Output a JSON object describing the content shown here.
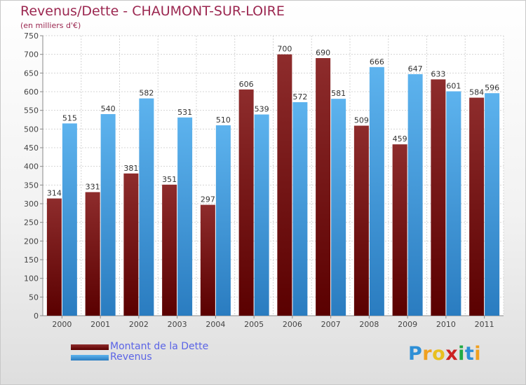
{
  "header": {
    "title": "Revenus/Dette - CHAUMONT-SUR-LOIRE",
    "subtitle": "(en milliers d'€)"
  },
  "legend": {
    "items": [
      {
        "label": "Montant de la Dette",
        "color": "#7a1818"
      },
      {
        "label": "Revenus",
        "color": "#3d9ce0"
      }
    ]
  },
  "brand": {
    "letters": [
      {
        "ch": "P",
        "color": "#2e8fd6"
      },
      {
        "ch": "r",
        "color": "#f0a020"
      },
      {
        "ch": "o",
        "color": "#e8c020"
      },
      {
        "ch": "x",
        "color": "#cc2222"
      },
      {
        "ch": "i",
        "color": "#22aa44"
      },
      {
        "ch": "t",
        "color": "#2e8fd6"
      },
      {
        "ch": "i",
        "color": "#f0a020"
      }
    ]
  },
  "chart_data": {
    "type": "bar",
    "title": "Revenus/Dette - CHAUMONT-SUR-LOIRE",
    "subtitle": "(en milliers d'€)",
    "categories": [
      "2000",
      "2001",
      "2002",
      "2003",
      "2004",
      "2005",
      "2006",
      "2007",
      "2008",
      "2009",
      "2010",
      "2011"
    ],
    "series": [
      {
        "name": "Montant de la Dette",
        "color": "#7a1818",
        "values": [
          314,
          331,
          381,
          351,
          297,
          606,
          700,
          690,
          509,
          459,
          633,
          584
        ]
      },
      {
        "name": "Revenus",
        "color": "#3d9ce0",
        "values": [
          515,
          540,
          582,
          531,
          510,
          539,
          572,
          581,
          666,
          647,
          601,
          596
        ]
      }
    ],
    "ylim": [
      0,
      750
    ],
    "yticks": [
      0,
      50,
      100,
      150,
      200,
      250,
      300,
      350,
      400,
      450,
      500,
      550,
      600,
      650,
      700,
      750
    ],
    "grid": true,
    "legend_position": "bottom-left"
  }
}
